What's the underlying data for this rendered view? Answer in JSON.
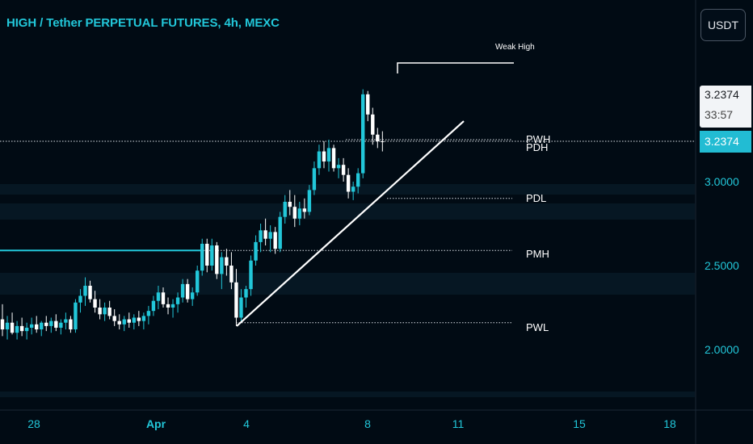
{
  "header": {
    "title": "HIGH / Tether PERPETUAL FUTURES, 4h, MEXC"
  },
  "toolbar": {
    "currency_button": "USDT"
  },
  "price_tags": {
    "last_price": "3.2374",
    "countdown": "33:57",
    "line_price": "3.2374"
  },
  "chart_data": {
    "type": "candlestick",
    "title": "HIGH / Tether PERPETUAL FUTURES, 4h, MEXC",
    "ylim": [
      1.75,
      3.75
    ],
    "y_ticks": [
      "3.0000",
      "2.5000",
      "2.0000"
    ],
    "x_ticks": [
      "28",
      "Apr",
      "4",
      "8",
      "11",
      "15",
      "18"
    ],
    "levels": [
      {
        "label": "Weak High",
        "price": 3.58
      },
      {
        "label": "PWH",
        "price": 3.25
      },
      {
        "label": "PDH",
        "price": 3.23
      },
      {
        "label": "PDL",
        "price": 2.9
      },
      {
        "label": "PMH",
        "price": 2.59
      },
      {
        "label": "PWL",
        "price": 2.16
      }
    ],
    "trendline": {
      "from_price": 2.14,
      "from_date": "Apr 3",
      "to_price": 3.36,
      "to_date": "Apr 10"
    },
    "candles": [
      {
        "o": 2.18,
        "h": 2.27,
        "l": 2.08,
        "c": 2.12
      },
      {
        "o": 2.12,
        "h": 2.2,
        "l": 2.06,
        "c": 2.16
      },
      {
        "o": 2.16,
        "h": 2.22,
        "l": 2.09,
        "c": 2.1
      },
      {
        "o": 2.1,
        "h": 2.17,
        "l": 2.06,
        "c": 2.14
      },
      {
        "o": 2.14,
        "h": 2.19,
        "l": 2.08,
        "c": 2.11
      },
      {
        "o": 2.11,
        "h": 2.16,
        "l": 2.06,
        "c": 2.13
      },
      {
        "o": 2.13,
        "h": 2.19,
        "l": 2.09,
        "c": 2.15
      },
      {
        "o": 2.15,
        "h": 2.2,
        "l": 2.1,
        "c": 2.12
      },
      {
        "o": 2.12,
        "h": 2.17,
        "l": 2.08,
        "c": 2.16
      },
      {
        "o": 2.16,
        "h": 2.2,
        "l": 2.11,
        "c": 2.14
      },
      {
        "o": 2.14,
        "h": 2.19,
        "l": 2.1,
        "c": 2.17
      },
      {
        "o": 2.17,
        "h": 2.21,
        "l": 2.11,
        "c": 2.13
      },
      {
        "o": 2.13,
        "h": 2.18,
        "l": 2.09,
        "c": 2.16
      },
      {
        "o": 2.16,
        "h": 2.22,
        "l": 2.12,
        "c": 2.18
      },
      {
        "o": 2.18,
        "h": 2.2,
        "l": 2.1,
        "c": 2.12
      },
      {
        "o": 2.12,
        "h": 2.3,
        "l": 2.1,
        "c": 2.28
      },
      {
        "o": 2.28,
        "h": 2.36,
        "l": 2.22,
        "c": 2.32
      },
      {
        "o": 2.32,
        "h": 2.43,
        "l": 2.26,
        "c": 2.38
      },
      {
        "o": 2.38,
        "h": 2.41,
        "l": 2.28,
        "c": 2.3
      },
      {
        "o": 2.3,
        "h": 2.35,
        "l": 2.22,
        "c": 2.25
      },
      {
        "o": 2.25,
        "h": 2.3,
        "l": 2.18,
        "c": 2.21
      },
      {
        "o": 2.21,
        "h": 2.28,
        "l": 2.17,
        "c": 2.25
      },
      {
        "o": 2.25,
        "h": 2.29,
        "l": 2.18,
        "c": 2.2
      },
      {
        "o": 2.2,
        "h": 2.24,
        "l": 2.14,
        "c": 2.17
      },
      {
        "o": 2.17,
        "h": 2.21,
        "l": 2.12,
        "c": 2.15
      },
      {
        "o": 2.15,
        "h": 2.2,
        "l": 2.11,
        "c": 2.18
      },
      {
        "o": 2.18,
        "h": 2.22,
        "l": 2.13,
        "c": 2.16
      },
      {
        "o": 2.16,
        "h": 2.21,
        "l": 2.12,
        "c": 2.19
      },
      {
        "o": 2.19,
        "h": 2.23,
        "l": 2.14,
        "c": 2.17
      },
      {
        "o": 2.17,
        "h": 2.22,
        "l": 2.12,
        "c": 2.2
      },
      {
        "o": 2.2,
        "h": 2.26,
        "l": 2.15,
        "c": 2.23
      },
      {
        "o": 2.23,
        "h": 2.32,
        "l": 2.2,
        "c": 2.29
      },
      {
        "o": 2.29,
        "h": 2.38,
        "l": 2.24,
        "c": 2.34
      },
      {
        "o": 2.34,
        "h": 2.37,
        "l": 2.25,
        "c": 2.27
      },
      {
        "o": 2.27,
        "h": 2.31,
        "l": 2.21,
        "c": 2.25
      },
      {
        "o": 2.25,
        "h": 2.3,
        "l": 2.19,
        "c": 2.27
      },
      {
        "o": 2.27,
        "h": 2.34,
        "l": 2.22,
        "c": 2.31
      },
      {
        "o": 2.31,
        "h": 2.42,
        "l": 2.28,
        "c": 2.39
      },
      {
        "o": 2.39,
        "h": 2.42,
        "l": 2.28,
        "c": 2.3
      },
      {
        "o": 2.3,
        "h": 2.37,
        "l": 2.26,
        "c": 2.34
      },
      {
        "o": 2.34,
        "h": 2.5,
        "l": 2.32,
        "c": 2.47
      },
      {
        "o": 2.47,
        "h": 2.66,
        "l": 2.44,
        "c": 2.63
      },
      {
        "o": 2.63,
        "h": 2.66,
        "l": 2.46,
        "c": 2.5
      },
      {
        "o": 2.5,
        "h": 2.66,
        "l": 2.47,
        "c": 2.62
      },
      {
        "o": 2.62,
        "h": 2.64,
        "l": 2.42,
        "c": 2.45
      },
      {
        "o": 2.45,
        "h": 2.58,
        "l": 2.36,
        "c": 2.55
      },
      {
        "o": 2.55,
        "h": 2.6,
        "l": 2.44,
        "c": 2.5
      },
      {
        "o": 2.5,
        "h": 2.58,
        "l": 2.36,
        "c": 2.4
      },
      {
        "o": 2.4,
        "h": 2.48,
        "l": 2.14,
        "c": 2.19
      },
      {
        "o": 2.19,
        "h": 2.36,
        "l": 2.16,
        "c": 2.31
      },
      {
        "o": 2.31,
        "h": 2.38,
        "l": 2.25,
        "c": 2.36
      },
      {
        "o": 2.36,
        "h": 2.56,
        "l": 2.32,
        "c": 2.53
      },
      {
        "o": 2.53,
        "h": 2.68,
        "l": 2.5,
        "c": 2.64
      },
      {
        "o": 2.64,
        "h": 2.75,
        "l": 2.58,
        "c": 2.71
      },
      {
        "o": 2.71,
        "h": 2.78,
        "l": 2.62,
        "c": 2.66
      },
      {
        "o": 2.66,
        "h": 2.74,
        "l": 2.58,
        "c": 2.7
      },
      {
        "o": 2.7,
        "h": 2.73,
        "l": 2.57,
        "c": 2.6
      },
      {
        "o": 2.6,
        "h": 2.82,
        "l": 2.58,
        "c": 2.79
      },
      {
        "o": 2.79,
        "h": 2.92,
        "l": 2.75,
        "c": 2.88
      },
      {
        "o": 2.88,
        "h": 2.95,
        "l": 2.8,
        "c": 2.85
      },
      {
        "o": 2.85,
        "h": 2.92,
        "l": 2.73,
        "c": 2.78
      },
      {
        "o": 2.78,
        "h": 2.88,
        "l": 2.74,
        "c": 2.84
      },
      {
        "o": 2.84,
        "h": 2.9,
        "l": 2.78,
        "c": 2.82
      },
      {
        "o": 2.82,
        "h": 2.98,
        "l": 2.8,
        "c": 2.95
      },
      {
        "o": 2.95,
        "h": 3.12,
        "l": 2.92,
        "c": 3.08
      },
      {
        "o": 3.08,
        "h": 3.22,
        "l": 3.04,
        "c": 3.18
      },
      {
        "o": 3.18,
        "h": 3.24,
        "l": 3.08,
        "c": 3.12
      },
      {
        "o": 3.12,
        "h": 3.25,
        "l": 3.06,
        "c": 3.2
      },
      {
        "o": 3.2,
        "h": 3.22,
        "l": 3.06,
        "c": 3.08
      },
      {
        "o": 3.08,
        "h": 3.14,
        "l": 3.02,
        "c": 3.1
      },
      {
        "o": 3.1,
        "h": 3.14,
        "l": 3.0,
        "c": 3.04
      },
      {
        "o": 3.04,
        "h": 3.08,
        "l": 2.9,
        "c": 2.94
      },
      {
        "o": 2.94,
        "h": 3.0,
        "l": 2.89,
        "c": 2.97
      },
      {
        "o": 2.97,
        "h": 3.08,
        "l": 2.93,
        "c": 3.05
      },
      {
        "o": 3.05,
        "h": 3.55,
        "l": 3.02,
        "c": 3.52
      },
      {
        "o": 3.52,
        "h": 3.54,
        "l": 3.36,
        "c": 3.4
      },
      {
        "o": 3.4,
        "h": 3.44,
        "l": 3.22,
        "c": 3.28
      },
      {
        "o": 3.28,
        "h": 3.32,
        "l": 3.2,
        "c": 3.24
      },
      {
        "o": 3.24,
        "h": 3.3,
        "l": 3.18,
        "c": 3.2374
      }
    ]
  }
}
